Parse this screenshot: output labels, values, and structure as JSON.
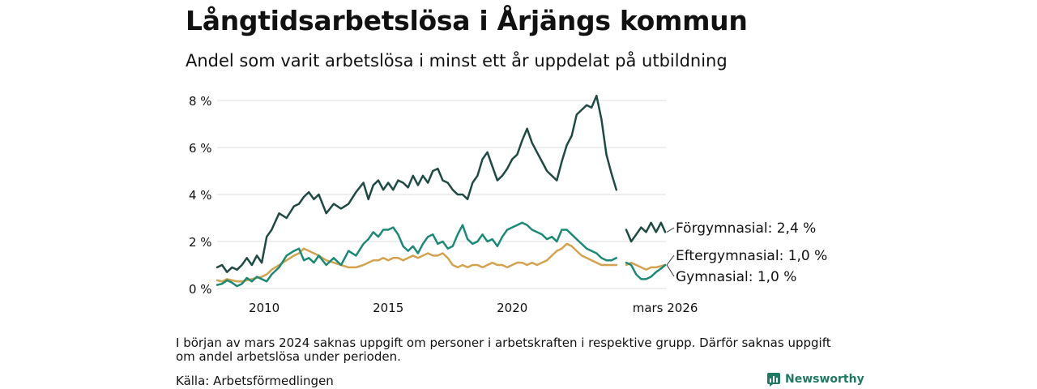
{
  "title": "Långtidsarbetslösa i Årjängs kommun",
  "subtitle": "Andel som varit arbetslösa i minst ett år uppdelat på utbildning",
  "footnote": "I början av mars 2024 saknas uppgift om personer i arbetskraften i respektive grupp. Därför saknas uppgift om andel arbetslösa under perioden.",
  "source": "Källa: Arbetsförmedlingen",
  "brand": "Newsworthy",
  "chart_data": {
    "type": "line",
    "title": "Långtidsarbetslösa i Årjängs kommun",
    "subtitle": "Andel som varit arbetslösa i minst ett år uppdelat på utbildning",
    "xlabel": "",
    "ylabel": "",
    "x_range": [
      2008.1,
      2026.2
    ],
    "ylim": [
      0,
      8.5
    ],
    "y_ticks": [
      0,
      2,
      4,
      6,
      8
    ],
    "y_tick_labels": [
      "0 %",
      "2 %",
      "4 %",
      "6 %",
      "8 %"
    ],
    "x_ticks": [
      2010,
      2015,
      2020,
      2026.17
    ],
    "x_tick_labels": [
      "2010",
      "2015",
      "2020",
      "mars 2026"
    ],
    "grid": true,
    "series": [
      {
        "name": "Förgymnasial",
        "end_label": "Förgymnasial: 2,4 %",
        "color": "#1e4a43",
        "segments": [
          [
            [
              2008.1,
              0.9
            ],
            [
              2008.3,
              1.0
            ],
            [
              2008.5,
              0.7
            ],
            [
              2008.7,
              0.9
            ],
            [
              2008.9,
              0.8
            ],
            [
              2009.1,
              1.0
            ],
            [
              2009.3,
              1.3
            ],
            [
              2009.5,
              1.0
            ],
            [
              2009.7,
              1.4
            ],
            [
              2009.9,
              1.1
            ],
            [
              2010.1,
              2.2
            ],
            [
              2010.3,
              2.5
            ],
            [
              2010.6,
              3.2
            ],
            [
              2010.9,
              3.0
            ],
            [
              2011.2,
              3.5
            ],
            [
              2011.4,
              3.6
            ],
            [
              2011.6,
              3.9
            ],
            [
              2011.8,
              4.1
            ],
            [
              2012.0,
              3.8
            ],
            [
              2012.2,
              4.0
            ],
            [
              2012.5,
              3.2
            ],
            [
              2012.8,
              3.6
            ],
            [
              2013.1,
              3.4
            ],
            [
              2013.4,
              3.6
            ],
            [
              2013.7,
              4.1
            ],
            [
              2014.0,
              4.5
            ],
            [
              2014.2,
              3.8
            ],
            [
              2014.4,
              4.4
            ],
            [
              2014.6,
              4.6
            ],
            [
              2014.8,
              4.2
            ],
            [
              2015.0,
              4.5
            ],
            [
              2015.2,
              4.2
            ],
            [
              2015.4,
              4.6
            ],
            [
              2015.6,
              4.5
            ],
            [
              2015.8,
              4.3
            ],
            [
              2016.0,
              4.8
            ],
            [
              2016.2,
              4.4
            ],
            [
              2016.4,
              4.8
            ],
            [
              2016.6,
              4.5
            ],
            [
              2016.8,
              5.0
            ],
            [
              2017.0,
              5.1
            ],
            [
              2017.2,
              4.6
            ],
            [
              2017.4,
              4.5
            ],
            [
              2017.6,
              4.2
            ],
            [
              2017.8,
              4.0
            ],
            [
              2018.0,
              4.0
            ],
            [
              2018.2,
              3.8
            ],
            [
              2018.4,
              4.5
            ],
            [
              2018.6,
              4.8
            ],
            [
              2018.8,
              5.5
            ],
            [
              2019.0,
              5.8
            ],
            [
              2019.2,
              5.2
            ],
            [
              2019.4,
              4.6
            ],
            [
              2019.6,
              4.8
            ],
            [
              2019.8,
              5.1
            ],
            [
              2020.0,
              5.5
            ],
            [
              2020.2,
              5.7
            ],
            [
              2020.4,
              6.3
            ],
            [
              2020.6,
              6.8
            ],
            [
              2020.8,
              6.2
            ],
            [
              2021.0,
              5.8
            ],
            [
              2021.2,
              5.4
            ],
            [
              2021.4,
              5.0
            ],
            [
              2021.6,
              4.8
            ],
            [
              2021.8,
              4.6
            ],
            [
              2022.0,
              5.4
            ],
            [
              2022.2,
              6.1
            ],
            [
              2022.4,
              6.5
            ],
            [
              2022.6,
              7.4
            ],
            [
              2022.8,
              7.6
            ],
            [
              2023.0,
              7.8
            ],
            [
              2023.2,
              7.7
            ],
            [
              2023.4,
              8.2
            ],
            [
              2023.6,
              7.2
            ],
            [
              2023.8,
              5.7
            ],
            [
              2024.0,
              4.9
            ],
            [
              2024.2,
              4.2
            ]
          ],
          [
            [
              2024.6,
              2.5
            ],
            [
              2024.8,
              2.0
            ],
            [
              2025.0,
              2.3
            ],
            [
              2025.2,
              2.6
            ],
            [
              2025.4,
              2.4
            ],
            [
              2025.6,
              2.8
            ],
            [
              2025.8,
              2.4
            ],
            [
              2026.0,
              2.8
            ],
            [
              2026.17,
              2.4
            ]
          ]
        ]
      },
      {
        "name": "Eftergymnasial",
        "end_label": "Eftergymnasial: 1,0 %",
        "color": "#1a8a76",
        "segments": [
          [
            [
              2008.1,
              0.15
            ],
            [
              2008.3,
              0.2
            ],
            [
              2008.5,
              0.35
            ],
            [
              2008.7,
              0.25
            ],
            [
              2008.9,
              0.1
            ],
            [
              2009.1,
              0.2
            ],
            [
              2009.3,
              0.45
            ],
            [
              2009.5,
              0.3
            ],
            [
              2009.7,
              0.5
            ],
            [
              2009.9,
              0.4
            ],
            [
              2010.1,
              0.3
            ],
            [
              2010.3,
              0.6
            ],
            [
              2010.6,
              0.9
            ],
            [
              2010.9,
              1.4
            ],
            [
              2011.2,
              1.6
            ],
            [
              2011.4,
              1.7
            ],
            [
              2011.6,
              1.2
            ],
            [
              2011.8,
              1.3
            ],
            [
              2012.0,
              1.1
            ],
            [
              2012.2,
              1.4
            ],
            [
              2012.5,
              1.0
            ],
            [
              2012.8,
              1.3
            ],
            [
              2013.1,
              1.0
            ],
            [
              2013.4,
              1.6
            ],
            [
              2013.7,
              1.4
            ],
            [
              2014.0,
              1.9
            ],
            [
              2014.2,
              2.1
            ],
            [
              2014.4,
              2.4
            ],
            [
              2014.6,
              2.2
            ],
            [
              2014.8,
              2.5
            ],
            [
              2015.0,
              2.5
            ],
            [
              2015.2,
              2.6
            ],
            [
              2015.4,
              2.3
            ],
            [
              2015.6,
              1.8
            ],
            [
              2015.8,
              1.6
            ],
            [
              2016.0,
              1.8
            ],
            [
              2016.2,
              1.5
            ],
            [
              2016.4,
              1.9
            ],
            [
              2016.6,
              2.2
            ],
            [
              2016.8,
              2.3
            ],
            [
              2017.0,
              1.9
            ],
            [
              2017.2,
              2.0
            ],
            [
              2017.4,
              1.7
            ],
            [
              2017.6,
              1.8
            ],
            [
              2017.8,
              2.3
            ],
            [
              2018.0,
              2.7
            ],
            [
              2018.2,
              2.1
            ],
            [
              2018.4,
              1.9
            ],
            [
              2018.6,
              2.0
            ],
            [
              2018.8,
              2.3
            ],
            [
              2019.0,
              2.0
            ],
            [
              2019.2,
              2.1
            ],
            [
              2019.4,
              1.8
            ],
            [
              2019.6,
              2.2
            ],
            [
              2019.8,
              2.5
            ],
            [
              2020.0,
              2.6
            ],
            [
              2020.2,
              2.7
            ],
            [
              2020.4,
              2.8
            ],
            [
              2020.6,
              2.7
            ],
            [
              2020.8,
              2.5
            ],
            [
              2021.0,
              2.4
            ],
            [
              2021.2,
              2.3
            ],
            [
              2021.4,
              2.1
            ],
            [
              2021.6,
              2.2
            ],
            [
              2021.8,
              2.0
            ],
            [
              2022.0,
              2.5
            ],
            [
              2022.2,
              2.5
            ],
            [
              2022.4,
              2.3
            ],
            [
              2022.6,
              2.1
            ],
            [
              2022.8,
              1.9
            ],
            [
              2023.0,
              1.7
            ],
            [
              2023.2,
              1.6
            ],
            [
              2023.4,
              1.5
            ],
            [
              2023.6,
              1.3
            ],
            [
              2023.8,
              1.2
            ],
            [
              2024.0,
              1.2
            ],
            [
              2024.2,
              1.3
            ]
          ],
          [
            [
              2024.6,
              1.1
            ],
            [
              2024.8,
              1.0
            ],
            [
              2025.0,
              0.6
            ],
            [
              2025.2,
              0.4
            ],
            [
              2025.4,
              0.4
            ],
            [
              2025.6,
              0.5
            ],
            [
              2025.8,
              0.7
            ],
            [
              2026.0,
              0.85
            ],
            [
              2026.17,
              1.0
            ]
          ]
        ]
      },
      {
        "name": "Gymnasial",
        "end_label": "Gymnasial: 1,0 %",
        "color": "#d4a24c",
        "segments": [
          [
            [
              2008.1,
              0.35
            ],
            [
              2008.3,
              0.3
            ],
            [
              2008.5,
              0.4
            ],
            [
              2008.7,
              0.35
            ],
            [
              2008.9,
              0.3
            ],
            [
              2009.1,
              0.3
            ],
            [
              2009.3,
              0.35
            ],
            [
              2009.5,
              0.4
            ],
            [
              2009.7,
              0.45
            ],
            [
              2009.9,
              0.5
            ],
            [
              2010.1,
              0.6
            ],
            [
              2010.3,
              0.8
            ],
            [
              2010.6,
              1.0
            ],
            [
              2010.9,
              1.2
            ],
            [
              2011.2,
              1.4
            ],
            [
              2011.4,
              1.5
            ],
            [
              2011.6,
              1.7
            ],
            [
              2011.8,
              1.6
            ],
            [
              2012.0,
              1.5
            ],
            [
              2012.2,
              1.4
            ],
            [
              2012.5,
              1.2
            ],
            [
              2012.8,
              1.1
            ],
            [
              2013.1,
              1.0
            ],
            [
              2013.4,
              0.9
            ],
            [
              2013.7,
              0.9
            ],
            [
              2014.0,
              1.0
            ],
            [
              2014.2,
              1.1
            ],
            [
              2014.4,
              1.2
            ],
            [
              2014.6,
              1.2
            ],
            [
              2014.8,
              1.3
            ],
            [
              2015.0,
              1.2
            ],
            [
              2015.2,
              1.3
            ],
            [
              2015.4,
              1.3
            ],
            [
              2015.6,
              1.2
            ],
            [
              2015.8,
              1.3
            ],
            [
              2016.0,
              1.4
            ],
            [
              2016.2,
              1.3
            ],
            [
              2016.4,
              1.4
            ],
            [
              2016.6,
              1.5
            ],
            [
              2016.8,
              1.4
            ],
            [
              2017.0,
              1.4
            ],
            [
              2017.2,
              1.5
            ],
            [
              2017.4,
              1.3
            ],
            [
              2017.6,
              1.0
            ],
            [
              2017.8,
              0.9
            ],
            [
              2018.0,
              1.0
            ],
            [
              2018.2,
              0.9
            ],
            [
              2018.4,
              1.0
            ],
            [
              2018.6,
              1.0
            ],
            [
              2018.8,
              0.9
            ],
            [
              2019.0,
              1.0
            ],
            [
              2019.2,
              1.1
            ],
            [
              2019.4,
              1.0
            ],
            [
              2019.6,
              1.0
            ],
            [
              2019.8,
              0.9
            ],
            [
              2020.0,
              1.0
            ],
            [
              2020.2,
              1.1
            ],
            [
              2020.4,
              1.1
            ],
            [
              2020.6,
              1.0
            ],
            [
              2020.8,
              1.1
            ],
            [
              2021.0,
              1.0
            ],
            [
              2021.2,
              1.1
            ],
            [
              2021.4,
              1.2
            ],
            [
              2021.6,
              1.4
            ],
            [
              2021.8,
              1.6
            ],
            [
              2022.0,
              1.7
            ],
            [
              2022.2,
              1.9
            ],
            [
              2022.4,
              1.8
            ],
            [
              2022.6,
              1.6
            ],
            [
              2022.8,
              1.4
            ],
            [
              2023.0,
              1.3
            ],
            [
              2023.2,
              1.2
            ],
            [
              2023.4,
              1.1
            ],
            [
              2023.6,
              1.0
            ],
            [
              2023.8,
              1.0
            ],
            [
              2024.0,
              1.0
            ],
            [
              2024.2,
              1.0
            ]
          ],
          [
            [
              2024.6,
              1.0
            ],
            [
              2024.8,
              1.1
            ],
            [
              2025.0,
              1.0
            ],
            [
              2025.2,
              0.9
            ],
            [
              2025.4,
              0.8
            ],
            [
              2025.6,
              0.9
            ],
            [
              2025.8,
              0.9
            ],
            [
              2026.0,
              0.95
            ],
            [
              2026.17,
              1.0
            ]
          ]
        ]
      }
    ]
  }
}
